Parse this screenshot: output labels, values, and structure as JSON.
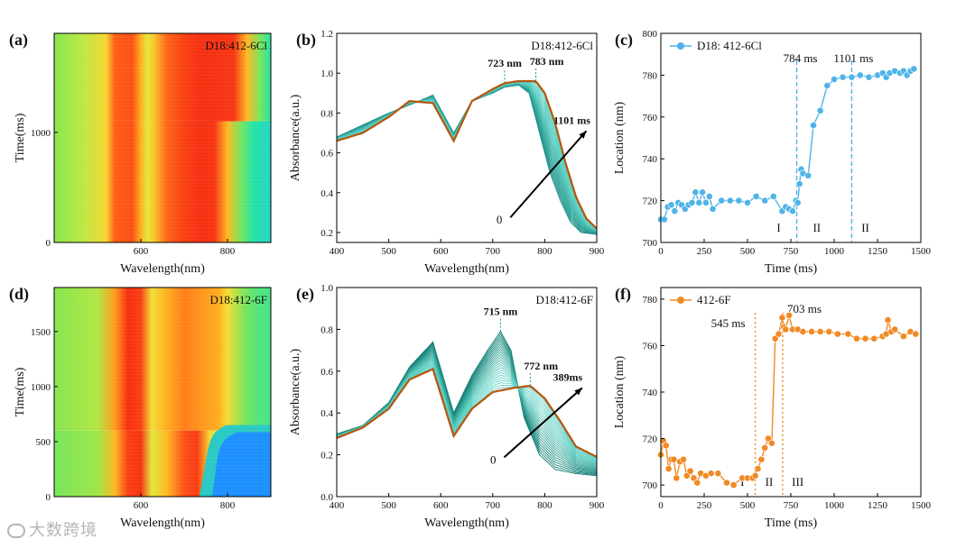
{
  "watermark": "大数跨境",
  "chart_data": [
    {
      "id": "a",
      "panel_label": "(a)",
      "type": "heatmap",
      "sample": "D18:412-6Cl",
      "xlabel": "Wavelength(nm)",
      "ylabel": "Time(ms)",
      "xlim": [
        400,
        900
      ],
      "ylim": [
        0,
        1900
      ],
      "xticks": [
        600,
        800
      ],
      "yticks": [
        0,
        1000
      ],
      "transition_time_ms": 1101,
      "colorscale": [
        "#2f6bff",
        "#22c3f0",
        "#26e3a4",
        "#8ee64a",
        "#f0e93a",
        "#ffb21f",
        "#ff5a16",
        "#f21e10"
      ],
      "bands": [
        {
          "wl": 400,
          "v": 0.42
        },
        {
          "wl": 470,
          "v": 0.5
        },
        {
          "wl": 520,
          "v": 0.62
        },
        {
          "wl": 540,
          "v": 0.85
        },
        {
          "wl": 580,
          "v": 0.88
        },
        {
          "wl": 600,
          "v": 0.72
        },
        {
          "wl": 615,
          "v": 0.55
        },
        {
          "wl": 630,
          "v": 0.66
        },
        {
          "wl": 660,
          "v": 0.84
        },
        {
          "wl": 700,
          "v": 0.92
        },
        {
          "wl": 740,
          "v": 0.96
        },
        {
          "wl": 770,
          "v": 0.94
        },
        {
          "wl": 800,
          "v": 0.7
        },
        {
          "wl": 830,
          "v": 0.4
        },
        {
          "wl": 860,
          "v": 0.28
        },
        {
          "wl": 900,
          "v": 0.22
        }
      ],
      "edge_shift_nm": 45
    },
    {
      "id": "b",
      "panel_label": "(b)",
      "type": "line",
      "sample": "D18:412-6Cl",
      "xlabel": "Wavelength(nm)",
      "ylabel": "Absorbance(a.u.)",
      "xlim": [
        400,
        900
      ],
      "ylim": [
        0.15,
        1.2
      ],
      "xticks": [
        400,
        500,
        600,
        700,
        800,
        900
      ],
      "yticks": [
        0.2,
        0.4,
        0.6,
        0.8,
        1.0,
        1.2
      ],
      "peak_labels": [
        {
          "text": "723 nm",
          "x": 723
        },
        {
          "text": "783 nm",
          "x": 783
        }
      ],
      "arrow_start_label": "0",
      "arrow_end_label": "1101 ms",
      "initial_color": "#1a8f86",
      "final_color": "#b4560c",
      "initial_spectrum": [
        [
          400,
          0.68
        ],
        [
          450,
          0.74
        ],
        [
          500,
          0.8
        ],
        [
          540,
          0.84
        ],
        [
          585,
          0.89
        ],
        [
          625,
          0.7
        ],
        [
          660,
          0.86
        ],
        [
          700,
          0.9
        ],
        [
          723,
          0.93
        ],
        [
          750,
          0.94
        ],
        [
          770,
          0.9
        ],
        [
          790,
          0.7
        ],
        [
          810,
          0.5
        ],
        [
          830,
          0.36
        ],
        [
          850,
          0.25
        ],
        [
          870,
          0.2
        ],
        [
          900,
          0.19
        ]
      ],
      "final_spectrum": [
        [
          400,
          0.66
        ],
        [
          450,
          0.7
        ],
        [
          500,
          0.78
        ],
        [
          540,
          0.86
        ],
        [
          585,
          0.85
        ],
        [
          625,
          0.66
        ],
        [
          660,
          0.86
        ],
        [
          700,
          0.92
        ],
        [
          723,
          0.95
        ],
        [
          750,
          0.96
        ],
        [
          783,
          0.96
        ],
        [
          800,
          0.9
        ],
        [
          820,
          0.75
        ],
        [
          840,
          0.55
        ],
        [
          860,
          0.38
        ],
        [
          880,
          0.27
        ],
        [
          900,
          0.22
        ]
      ],
      "n_curves": 24
    },
    {
      "id": "c",
      "panel_label": "(c)",
      "type": "scatter",
      "xlabel": "Time (ms)",
      "ylabel": "Location (nm)",
      "xlim": [
        0,
        1500
      ],
      "ylim": [
        700,
        800
      ],
      "xticks": [
        0,
        250,
        500,
        750,
        1000,
        1250,
        1500
      ],
      "yticks": [
        700,
        720,
        740,
        760,
        780,
        800
      ],
      "legend": "D18: 412-6Cl",
      "color": "#4fb3e8",
      "vlines": [
        {
          "x": 784,
          "label": "784 ms"
        },
        {
          "x": 1101,
          "label": "1101 ms"
        }
      ],
      "regions": [
        {
          "x": 680,
          "label": "I"
        },
        {
          "x": 900,
          "label": "II"
        },
        {
          "x": 1180,
          "label": "II"
        }
      ],
      "x": [
        0,
        20,
        40,
        60,
        80,
        100,
        120,
        140,
        160,
        180,
        200,
        220,
        240,
        260,
        280,
        300,
        350,
        400,
        450,
        500,
        550,
        600,
        650,
        700,
        720,
        740,
        760,
        780,
        790,
        800,
        810,
        820,
        850,
        880,
        920,
        960,
        1000,
        1050,
        1101,
        1150,
        1200,
        1250,
        1280,
        1300,
        1320,
        1350,
        1380,
        1400,
        1420,
        1440,
        1460
      ],
      "y": [
        711,
        711,
        717,
        718,
        715,
        719,
        718,
        716,
        718,
        719,
        724,
        719,
        724,
        719,
        722,
        716,
        720,
        720,
        720,
        719,
        722,
        720,
        722,
        715,
        717,
        716,
        715,
        720,
        719,
        728,
        735,
        733,
        732,
        756,
        763,
        775,
        778,
        779,
        779,
        780,
        779,
        780,
        781,
        779,
        781,
        782,
        781,
        782,
        780,
        782,
        783
      ]
    },
    {
      "id": "d",
      "panel_label": "(d)",
      "type": "heatmap",
      "sample": "D18:412-6F",
      "xlabel": "Wavelength(nm)",
      "ylabel": "Time(ms)",
      "xlim": [
        400,
        900
      ],
      "ylim": [
        0,
        1900
      ],
      "xticks": [
        600,
        800
      ],
      "yticks": [
        0,
        500,
        1000,
        1500
      ],
      "transition_time_ms": 600,
      "bands_before": [
        {
          "wl": 400,
          "v": 0.4
        },
        {
          "wl": 500,
          "v": 0.45
        },
        {
          "wl": 540,
          "v": 0.7
        },
        {
          "wl": 570,
          "v": 0.92
        },
        {
          "wl": 600,
          "v": 0.95
        },
        {
          "wl": 625,
          "v": 0.55
        },
        {
          "wl": 660,
          "v": 0.7
        },
        {
          "wl": 700,
          "v": 0.88
        },
        {
          "wl": 730,
          "v": 0.93
        },
        {
          "wl": 760,
          "v": 0.6
        },
        {
          "wl": 800,
          "v": 0.42
        },
        {
          "wl": 900,
          "v": 0.38
        }
      ],
      "bands_after": [
        {
          "wl": 400,
          "v": 0.42
        },
        {
          "wl": 500,
          "v": 0.48
        },
        {
          "wl": 540,
          "v": 0.75
        },
        {
          "wl": 570,
          "v": 0.96
        },
        {
          "wl": 600,
          "v": 0.92
        },
        {
          "wl": 625,
          "v": 0.6
        },
        {
          "wl": 660,
          "v": 0.72
        },
        {
          "wl": 700,
          "v": 0.8
        },
        {
          "wl": 740,
          "v": 0.76
        },
        {
          "wl": 780,
          "v": 0.72
        },
        {
          "wl": 800,
          "v": 0.6
        },
        {
          "wl": 840,
          "v": 0.4
        },
        {
          "wl": 870,
          "v": 0.35
        },
        {
          "wl": 900,
          "v": 0.33
        }
      ],
      "blue_block": {
        "wl_start": 760,
        "wl_end": 900,
        "t_start": 0,
        "t_end": 650
      }
    },
    {
      "id": "e",
      "panel_label": "(e)",
      "type": "line",
      "sample": "D18:412-6F",
      "xlabel": "Wavelength(nm)",
      "ylabel": "Absorbance(a.u.)",
      "xlim": [
        400,
        900
      ],
      "ylim": [
        0,
        1.0
      ],
      "xticks": [
        400,
        500,
        600,
        700,
        800,
        900
      ],
      "yticks": [
        0.0,
        0.2,
        0.4,
        0.6,
        0.8,
        1.0
      ],
      "peak_labels": [
        {
          "text": "715 nm",
          "x": 715
        },
        {
          "text": "772 nm",
          "x": 772
        }
      ],
      "arrow_start_label": "0",
      "arrow_end_label": "389ms",
      "initial_color": "#0f7a70",
      "final_color": "#b4560c",
      "initial_spectrum": [
        [
          400,
          0.3
        ],
        [
          450,
          0.34
        ],
        [
          500,
          0.45
        ],
        [
          540,
          0.62
        ],
        [
          585,
          0.74
        ],
        [
          625,
          0.4
        ],
        [
          660,
          0.58
        ],
        [
          690,
          0.7
        ],
        [
          715,
          0.79
        ],
        [
          735,
          0.7
        ],
        [
          760,
          0.38
        ],
        [
          790,
          0.2
        ],
        [
          820,
          0.13
        ],
        [
          860,
          0.11
        ],
        [
          900,
          0.1
        ]
      ],
      "final_spectrum": [
        [
          400,
          0.28
        ],
        [
          450,
          0.33
        ],
        [
          500,
          0.42
        ],
        [
          540,
          0.56
        ],
        [
          585,
          0.61
        ],
        [
          625,
          0.29
        ],
        [
          660,
          0.42
        ],
        [
          700,
          0.5
        ],
        [
          740,
          0.52
        ],
        [
          772,
          0.53
        ],
        [
          800,
          0.47
        ],
        [
          830,
          0.36
        ],
        [
          860,
          0.24
        ],
        [
          900,
          0.19
        ]
      ],
      "n_curves": 24
    },
    {
      "id": "f",
      "panel_label": "(f)",
      "type": "scatter",
      "xlabel": "Time (ms)",
      "ylabel": "Location (nm)",
      "xlim": [
        0,
        1500
      ],
      "ylim": [
        695,
        785
      ],
      "xticks": [
        0,
        250,
        500,
        750,
        1000,
        1250,
        1500
      ],
      "yticks": [
        700,
        720,
        740,
        760,
        780
      ],
      "legend": "412-6F",
      "color": "#f08a24",
      "vlines": [
        {
          "x": 545,
          "label": "545 ms"
        },
        {
          "x": 703,
          "label": "703 ms"
        }
      ],
      "regions": [
        {
          "x": 470,
          "label": "I"
        },
        {
          "x": 625,
          "label": "II"
        },
        {
          "x": 790,
          "label": "III"
        }
      ],
      "x": [
        0,
        15,
        30,
        45,
        60,
        75,
        90,
        110,
        130,
        150,
        170,
        190,
        210,
        230,
        260,
        290,
        330,
        380,
        420,
        470,
        500,
        530,
        545,
        560,
        580,
        600,
        620,
        640,
        660,
        680,
        700,
        710,
        720,
        740,
        760,
        790,
        820,
        870,
        920,
        970,
        1020,
        1080,
        1130,
        1180,
        1230,
        1280,
        1300,
        1310,
        1330,
        1350,
        1400,
        1440,
        1470
      ],
      "y": [
        713,
        719,
        717,
        707,
        711,
        711,
        703,
        710,
        711,
        704,
        706,
        703,
        701,
        705,
        704,
        705,
        705,
        701,
        700,
        703,
        703,
        703,
        704,
        707,
        711,
        716,
        720,
        718,
        763,
        765,
        772,
        768,
        767,
        773,
        767,
        767,
        766,
        766,
        766,
        766,
        765,
        765,
        763,
        763,
        763,
        764,
        765,
        771,
        766,
        767,
        764,
        766,
        765
      ]
    }
  ]
}
